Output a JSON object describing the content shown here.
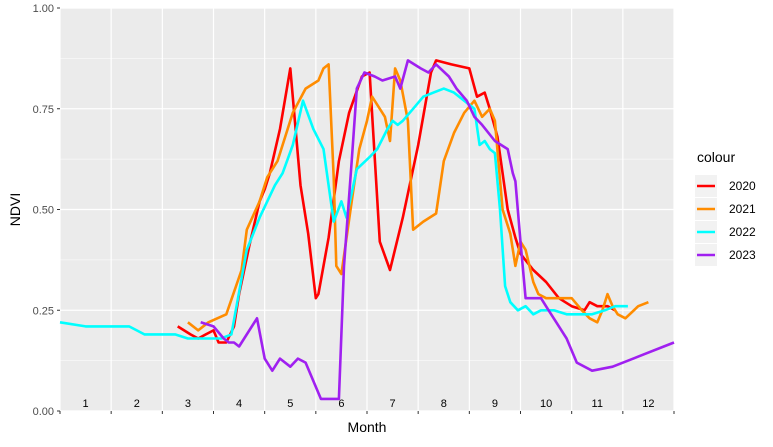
{
  "chart_data": {
    "type": "line",
    "title": "",
    "xlabel": "Month",
    "ylabel": "NDVI",
    "xlim": [
      0.5,
      12.5
    ],
    "ylim": [
      0,
      1
    ],
    "y_ticks": [
      "0.00",
      "0.25",
      "0.50",
      "0.75",
      "1.00"
    ],
    "y_tick_values": [
      0,
      0.25,
      0.5,
      0.75,
      1.0
    ],
    "month_labels": [
      "1",
      "2",
      "3",
      "4",
      "5",
      "6",
      "7",
      "8",
      "9",
      "10",
      "11",
      "12"
    ],
    "grid": true,
    "legend": {
      "title": "colour",
      "placement": "right"
    },
    "series": [
      {
        "name": "2020",
        "color": "#ff0000",
        "points": [
          [
            2.8,
            0.21
          ],
          [
            3.05,
            0.19
          ],
          [
            3.2,
            0.18
          ],
          [
            3.35,
            0.19
          ],
          [
            3.5,
            0.2
          ],
          [
            3.6,
            0.17
          ],
          [
            3.75,
            0.17
          ],
          [
            3.9,
            0.21
          ],
          [
            4.0,
            0.29
          ],
          [
            4.2,
            0.41
          ],
          [
            4.4,
            0.52
          ],
          [
            4.5,
            0.55
          ],
          [
            4.6,
            0.59
          ],
          [
            4.8,
            0.7
          ],
          [
            5.0,
            0.85
          ],
          [
            5.2,
            0.56
          ],
          [
            5.35,
            0.44
          ],
          [
            5.5,
            0.28
          ],
          [
            5.55,
            0.29
          ],
          [
            5.75,
            0.43
          ],
          [
            5.95,
            0.62
          ],
          [
            6.15,
            0.74
          ],
          [
            6.4,
            0.83
          ],
          [
            6.55,
            0.84
          ],
          [
            6.75,
            0.42
          ],
          [
            6.95,
            0.35
          ],
          [
            7.2,
            0.48
          ],
          [
            7.5,
            0.66
          ],
          [
            7.75,
            0.84
          ],
          [
            7.85,
            0.87
          ],
          [
            8.15,
            0.86
          ],
          [
            8.5,
            0.85
          ],
          [
            8.65,
            0.78
          ],
          [
            8.8,
            0.79
          ],
          [
            8.9,
            0.75
          ],
          [
            9.05,
            0.68
          ],
          [
            9.25,
            0.5
          ],
          [
            9.4,
            0.43
          ],
          [
            9.5,
            0.39
          ],
          [
            9.75,
            0.35
          ],
          [
            10.0,
            0.32
          ],
          [
            10.25,
            0.28
          ],
          [
            10.5,
            0.26
          ],
          [
            10.75,
            0.25
          ],
          [
            10.85,
            0.27
          ],
          [
            11.0,
            0.26
          ],
          [
            11.2,
            0.26
          ],
          [
            11.35,
            0.25
          ]
        ]
      },
      {
        "name": "2021",
        "color": "#ff8c00",
        "points": [
          [
            3.0,
            0.22
          ],
          [
            3.2,
            0.2
          ],
          [
            3.4,
            0.22
          ],
          [
            3.75,
            0.24
          ],
          [
            4.05,
            0.35
          ],
          [
            4.15,
            0.45
          ],
          [
            4.4,
            0.52
          ],
          [
            4.55,
            0.58
          ],
          [
            4.75,
            0.62
          ],
          [
            5.05,
            0.74
          ],
          [
            5.3,
            0.8
          ],
          [
            5.55,
            0.82
          ],
          [
            5.65,
            0.85
          ],
          [
            5.75,
            0.86
          ],
          [
            5.85,
            0.58
          ],
          [
            5.9,
            0.36
          ],
          [
            6.0,
            0.34
          ],
          [
            6.2,
            0.52
          ],
          [
            6.35,
            0.65
          ],
          [
            6.5,
            0.72
          ],
          [
            6.6,
            0.78
          ],
          [
            6.7,
            0.76
          ],
          [
            6.85,
            0.73
          ],
          [
            6.95,
            0.67
          ],
          [
            7.05,
            0.85
          ],
          [
            7.15,
            0.82
          ],
          [
            7.3,
            0.72
          ],
          [
            7.4,
            0.45
          ],
          [
            7.6,
            0.47
          ],
          [
            7.85,
            0.49
          ],
          [
            8.0,
            0.62
          ],
          [
            8.2,
            0.69
          ],
          [
            8.4,
            0.74
          ],
          [
            8.6,
            0.77
          ],
          [
            8.75,
            0.73
          ],
          [
            8.9,
            0.75
          ],
          [
            9.0,
            0.72
          ],
          [
            9.15,
            0.5
          ],
          [
            9.3,
            0.44
          ],
          [
            9.4,
            0.36
          ],
          [
            9.5,
            0.42
          ],
          [
            9.6,
            0.4
          ],
          [
            9.75,
            0.32
          ],
          [
            9.85,
            0.29
          ],
          [
            10.0,
            0.28
          ],
          [
            10.25,
            0.28
          ],
          [
            10.5,
            0.28
          ],
          [
            10.7,
            0.25
          ],
          [
            10.85,
            0.23
          ],
          [
            11.0,
            0.22
          ],
          [
            11.1,
            0.25
          ],
          [
            11.2,
            0.29
          ],
          [
            11.3,
            0.26
          ],
          [
            11.4,
            0.24
          ],
          [
            11.55,
            0.23
          ],
          [
            11.8,
            0.26
          ],
          [
            12.0,
            0.27
          ]
        ]
      },
      {
        "name": "2022",
        "color": "#00ffff",
        "points": [
          [
            0.5,
            0.22
          ],
          [
            1.0,
            0.21
          ],
          [
            1.5,
            0.21
          ],
          [
            1.85,
            0.21
          ],
          [
            2.0,
            0.2
          ],
          [
            2.15,
            0.19
          ],
          [
            2.4,
            0.19
          ],
          [
            2.75,
            0.19
          ],
          [
            3.0,
            0.18
          ],
          [
            3.25,
            0.18
          ],
          [
            3.5,
            0.18
          ],
          [
            3.65,
            0.18
          ],
          [
            3.85,
            0.19
          ],
          [
            4.15,
            0.4
          ],
          [
            4.4,
            0.48
          ],
          [
            4.7,
            0.56
          ],
          [
            4.85,
            0.59
          ],
          [
            5.05,
            0.66
          ],
          [
            5.25,
            0.77
          ],
          [
            5.45,
            0.7
          ],
          [
            5.65,
            0.65
          ],
          [
            5.85,
            0.47
          ],
          [
            6.0,
            0.52
          ],
          [
            6.1,
            0.48
          ],
          [
            6.3,
            0.6
          ],
          [
            6.55,
            0.63
          ],
          [
            6.7,
            0.65
          ],
          [
            6.9,
            0.7
          ],
          [
            7.0,
            0.72
          ],
          [
            7.1,
            0.71
          ],
          [
            7.2,
            0.72
          ],
          [
            7.4,
            0.75
          ],
          [
            7.6,
            0.78
          ],
          [
            7.8,
            0.79
          ],
          [
            8.0,
            0.8
          ],
          [
            8.2,
            0.79
          ],
          [
            8.4,
            0.77
          ],
          [
            8.6,
            0.75
          ],
          [
            8.7,
            0.66
          ],
          [
            8.8,
            0.67
          ],
          [
            8.9,
            0.65
          ],
          [
            9.0,
            0.64
          ],
          [
            9.1,
            0.5
          ],
          [
            9.2,
            0.31
          ],
          [
            9.3,
            0.27
          ],
          [
            9.45,
            0.25
          ],
          [
            9.6,
            0.26
          ],
          [
            9.75,
            0.24
          ],
          [
            9.9,
            0.25
          ],
          [
            10.15,
            0.25
          ],
          [
            10.4,
            0.24
          ],
          [
            10.65,
            0.24
          ],
          [
            10.9,
            0.24
          ],
          [
            11.15,
            0.25
          ],
          [
            11.35,
            0.26
          ],
          [
            11.6,
            0.26
          ]
        ]
      },
      {
        "name": "2023",
        "color": "#a020f0",
        "points": [
          [
            3.25,
            0.22
          ],
          [
            3.5,
            0.21
          ],
          [
            3.7,
            0.18
          ],
          [
            3.8,
            0.17
          ],
          [
            3.9,
            0.17
          ],
          [
            4.0,
            0.16
          ],
          [
            4.35,
            0.23
          ],
          [
            4.5,
            0.13
          ],
          [
            4.65,
            0.1
          ],
          [
            4.8,
            0.13
          ],
          [
            5.0,
            0.11
          ],
          [
            5.15,
            0.13
          ],
          [
            5.3,
            0.12
          ],
          [
            5.6,
            0.03
          ],
          [
            5.95,
            0.03
          ],
          [
            6.05,
            0.36
          ],
          [
            6.2,
            0.62
          ],
          [
            6.3,
            0.8
          ],
          [
            6.45,
            0.84
          ],
          [
            6.65,
            0.83
          ],
          [
            6.8,
            0.82
          ],
          [
            7.05,
            0.83
          ],
          [
            7.15,
            0.8
          ],
          [
            7.3,
            0.87
          ],
          [
            7.55,
            0.85
          ],
          [
            7.7,
            0.84
          ],
          [
            7.85,
            0.86
          ],
          [
            8.1,
            0.83
          ],
          [
            8.25,
            0.8
          ],
          [
            8.45,
            0.77
          ],
          [
            8.6,
            0.73
          ],
          [
            8.75,
            0.71
          ],
          [
            9.0,
            0.67
          ],
          [
            9.25,
            0.65
          ],
          [
            9.35,
            0.59
          ],
          [
            9.4,
            0.57
          ],
          [
            9.5,
            0.42
          ],
          [
            9.6,
            0.28
          ],
          [
            9.75,
            0.28
          ],
          [
            9.9,
            0.28
          ],
          [
            10.05,
            0.25
          ],
          [
            10.2,
            0.22
          ],
          [
            10.4,
            0.18
          ],
          [
            10.6,
            0.12
          ],
          [
            10.9,
            0.1
          ],
          [
            11.3,
            0.11
          ],
          [
            11.9,
            0.14
          ],
          [
            12.3,
            0.16
          ],
          [
            12.5,
            0.17
          ]
        ]
      }
    ]
  }
}
